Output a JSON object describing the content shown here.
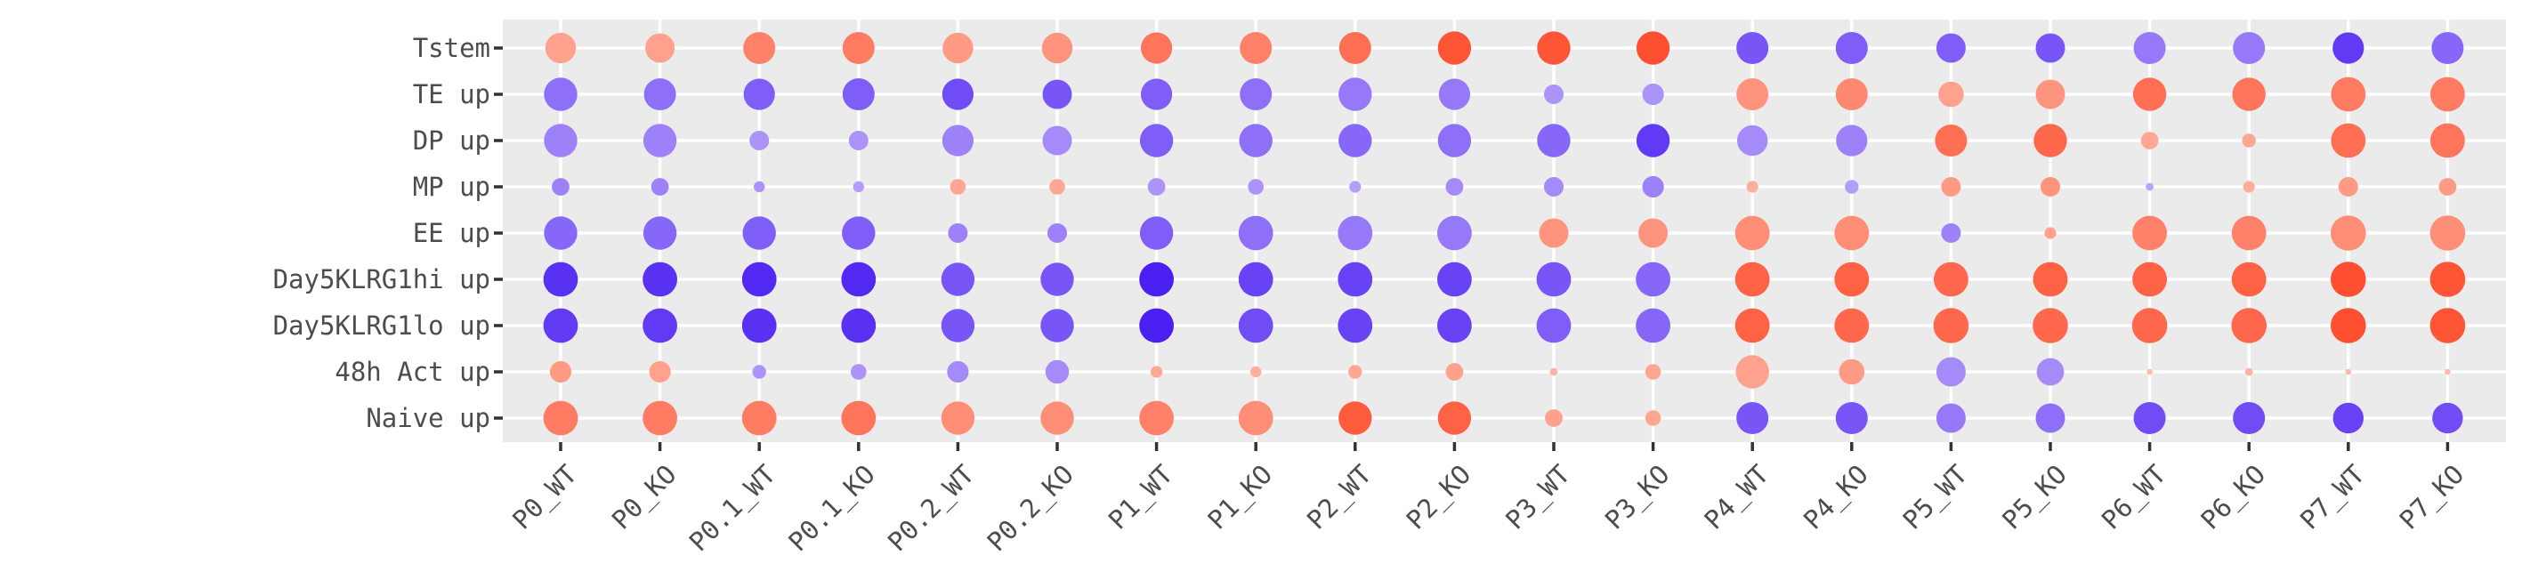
{
  "chart_data": {
    "type": "scatter",
    "title": "",
    "xlabel": "",
    "ylabel": "",
    "legend": "none",
    "grid": true,
    "panel_background": "#ebebeb",
    "colors": {
      "low": "#4a1ff2",
      "high": "#ff4f30"
    },
    "x_categories": [
      "P0_WT",
      "P0_KO",
      "P0.1_WT",
      "P0.1_KO",
      "P0.2_WT",
      "P0.2_KO",
      "P1_WT",
      "P1_KO",
      "P2_WT",
      "P2_KO",
      "P3_WT",
      "P3_KO",
      "P4_WT",
      "P4_KO",
      "P5_WT",
      "P5_KO",
      "P6_WT",
      "P6_KO",
      "P7_WT",
      "P7_KO"
    ],
    "y_categories": [
      "Tstem",
      "TE up",
      "DP up",
      "MP up",
      "EE up",
      "Day5KLRG1hi up",
      "Day5KLRG1lo up",
      "48h Act up",
      "Naive up"
    ],
    "points": [
      {
        "y": "Tstem",
        "score": [
          0.35,
          0.35,
          0.6,
          0.65,
          0.4,
          0.45,
          0.7,
          0.6,
          0.75,
          0.95,
          0.95,
          1.0,
          -0.7,
          -0.65,
          -0.65,
          -0.7,
          -0.5,
          -0.5,
          -0.85,
          -0.6
        ],
        "size": [
          0.78,
          0.75,
          0.82,
          0.82,
          0.78,
          0.78,
          0.8,
          0.82,
          0.82,
          0.85,
          0.85,
          0.85,
          0.82,
          0.82,
          0.75,
          0.75,
          0.82,
          0.82,
          0.8,
          0.82
        ]
      },
      {
        "y": "TE up",
        "score": [
          -0.55,
          -0.55,
          -0.65,
          -0.65,
          -0.75,
          -0.7,
          -0.65,
          -0.55,
          -0.5,
          -0.5,
          -0.35,
          -0.35,
          0.45,
          0.55,
          0.35,
          0.45,
          0.75,
          0.7,
          0.65,
          0.65
        ],
        "size": [
          0.85,
          0.82,
          0.8,
          0.82,
          0.8,
          0.75,
          0.8,
          0.82,
          0.85,
          0.8,
          0.5,
          0.55,
          0.82,
          0.82,
          0.65,
          0.75,
          0.85,
          0.85,
          0.88,
          0.88
        ]
      },
      {
        "y": "DP up",
        "score": [
          -0.45,
          -0.45,
          -0.35,
          -0.35,
          -0.45,
          -0.4,
          -0.65,
          -0.55,
          -0.6,
          -0.55,
          -0.6,
          -0.85,
          -0.4,
          -0.45,
          0.75,
          0.8,
          0.3,
          0.3,
          0.75,
          0.7
        ],
        "size": [
          0.85,
          0.85,
          0.5,
          0.5,
          0.8,
          0.75,
          0.85,
          0.85,
          0.85,
          0.85,
          0.85,
          0.85,
          0.78,
          0.8,
          0.82,
          0.85,
          0.45,
          0.35,
          0.88,
          0.88
        ]
      },
      {
        "y": "MP up",
        "score": [
          -0.45,
          -0.45,
          -0.35,
          -0.3,
          0.3,
          0.3,
          -0.35,
          -0.35,
          -0.3,
          -0.4,
          -0.4,
          -0.45,
          0.25,
          -0.3,
          0.4,
          0.45,
          -0.25,
          0.25,
          0.4,
          0.4
        ],
        "size": [
          0.45,
          0.45,
          0.28,
          0.28,
          0.4,
          0.4,
          0.45,
          0.4,
          0.3,
          0.45,
          0.5,
          0.55,
          0.3,
          0.35,
          0.5,
          0.5,
          0.2,
          0.3,
          0.5,
          0.45
        ]
      },
      {
        "y": "EE up",
        "score": [
          -0.6,
          -0.6,
          -0.65,
          -0.65,
          -0.45,
          -0.45,
          -0.65,
          -0.55,
          -0.5,
          -0.5,
          0.45,
          0.45,
          0.5,
          0.5,
          -0.45,
          0.35,
          0.6,
          0.6,
          0.5,
          0.5
        ],
        "size": [
          0.85,
          0.85,
          0.85,
          0.85,
          0.5,
          0.5,
          0.85,
          0.88,
          0.88,
          0.88,
          0.75,
          0.75,
          0.88,
          0.88,
          0.5,
          0.3,
          0.88,
          0.88,
          0.9,
          0.9
        ]
      },
      {
        "y": "Day5KLRG1hi up",
        "score": [
          -0.9,
          -0.9,
          -0.95,
          -0.95,
          -0.7,
          -0.7,
          -1.0,
          -0.8,
          -0.8,
          -0.8,
          -0.7,
          -0.6,
          0.85,
          0.85,
          0.8,
          0.85,
          0.85,
          0.85,
          1.0,
          0.95
        ],
        "size": [
          0.88,
          0.88,
          0.88,
          0.88,
          0.85,
          0.85,
          0.88,
          0.88,
          0.88,
          0.88,
          0.88,
          0.88,
          0.88,
          0.88,
          0.88,
          0.88,
          0.88,
          0.88,
          0.9,
          0.9
        ]
      },
      {
        "y": "Day5KLRG1lo up",
        "score": [
          -0.85,
          -0.85,
          -0.9,
          -0.9,
          -0.7,
          -0.7,
          -1.0,
          -0.75,
          -0.8,
          -0.8,
          -0.65,
          -0.6,
          0.85,
          0.8,
          0.8,
          0.8,
          0.8,
          0.8,
          1.0,
          0.95
        ],
        "size": [
          0.88,
          0.88,
          0.88,
          0.88,
          0.85,
          0.85,
          0.88,
          0.88,
          0.88,
          0.88,
          0.88,
          0.88,
          0.88,
          0.88,
          0.9,
          0.9,
          0.9,
          0.9,
          0.9,
          0.9
        ]
      },
      {
        "y": "48h Act up",
        "score": [
          0.4,
          0.35,
          -0.35,
          -0.35,
          -0.4,
          -0.4,
          0.3,
          0.25,
          0.3,
          0.35,
          0.2,
          0.3,
          0.35,
          0.4,
          -0.4,
          -0.4,
          0.15,
          0.2,
          0.15,
          0.15
        ],
        "size": [
          0.55,
          0.55,
          0.35,
          0.4,
          0.55,
          0.6,
          0.3,
          0.28,
          0.35,
          0.45,
          0.2,
          0.4,
          0.85,
          0.65,
          0.75,
          0.7,
          0.15,
          0.2,
          0.15,
          0.15
        ]
      },
      {
        "y": "Naive up",
        "score": [
          0.65,
          0.65,
          0.65,
          0.7,
          0.5,
          0.5,
          0.6,
          0.5,
          0.9,
          0.85,
          0.35,
          0.3,
          -0.7,
          -0.7,
          -0.5,
          -0.55,
          -0.75,
          -0.75,
          -0.8,
          -0.75
        ],
        "size": [
          0.88,
          0.88,
          0.88,
          0.88,
          0.85,
          0.85,
          0.88,
          0.88,
          0.85,
          0.85,
          0.45,
          0.4,
          0.82,
          0.82,
          0.75,
          0.75,
          0.82,
          0.82,
          0.78,
          0.78
        ]
      }
    ]
  }
}
